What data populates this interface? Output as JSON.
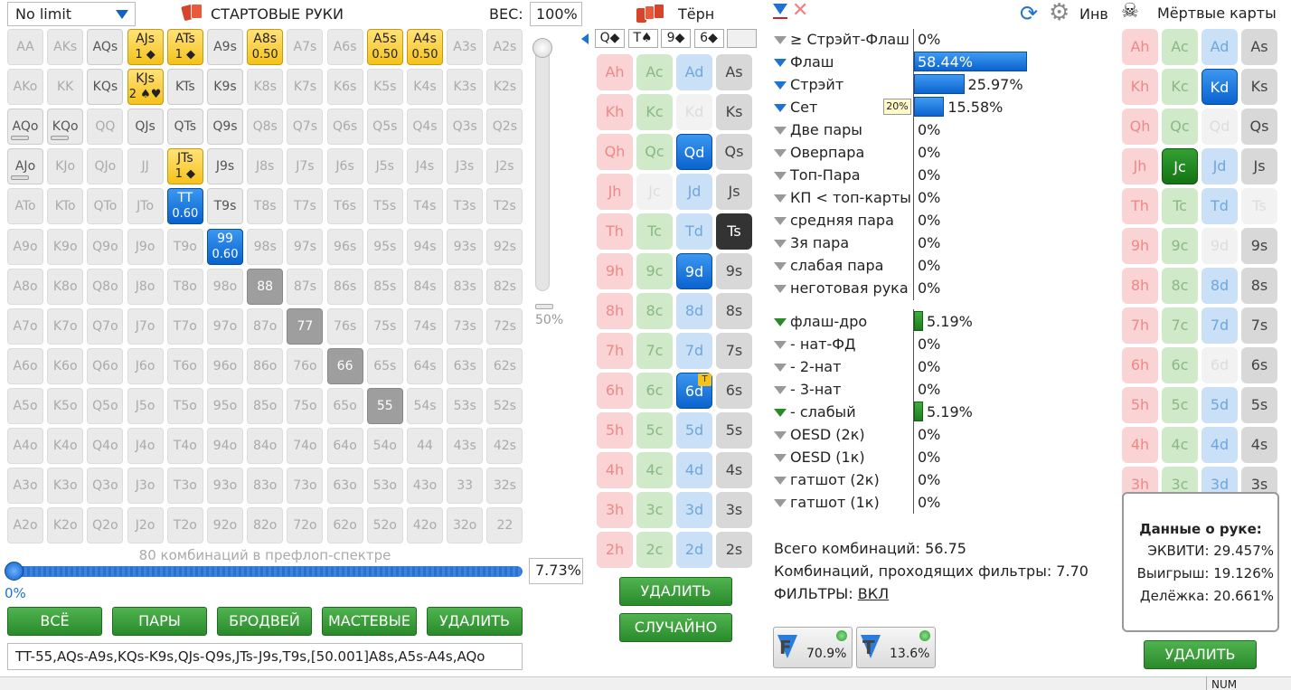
{
  "preflop": {
    "limit_select": "No limit",
    "title": "СТАРТОВЫЕ РУКИ",
    "weight_label": "ВЕС:",
    "weight_value": "100%",
    "slider_pct": "50%",
    "combos_note": "80 комбинаций в префлоп-спектре",
    "range_pct": "7.73%",
    "zero": "0%",
    "buttons": [
      "ВСЁ",
      "ПАРЫ",
      "БРОДВЕЙ",
      "МАСТЕВЫЕ",
      "УДАЛИТЬ"
    ],
    "range_text": "TT-55,AQs-A9s,KQs-K9s,QJs-Q9s,JTs-J9s,T9s,[50.001]A8s,A5s-A4s,AQo",
    "grid": [
      [
        "AA",
        "AKs",
        "AQs",
        "AJs|1 ◆",
        "ATs|1 ◆",
        "A9s",
        "A8s|0.50",
        "A7s",
        "A6s",
        "A5s|0.50",
        "A4s|0.50",
        "A3s",
        "A2s"
      ],
      [
        "AKo",
        "KK",
        "KQs",
        "KJs|2 ♠♥",
        "KTs",
        "K9s",
        "K8s",
        "K7s",
        "K6s",
        "K5s",
        "K4s",
        "K3s",
        "K2s"
      ],
      [
        "AQo",
        "KQo",
        "QQ",
        "QJs",
        "QTs",
        "Q9s",
        "Q8s",
        "Q7s",
        "Q6s",
        "Q5s",
        "Q4s",
        "Q3s",
        "Q2s"
      ],
      [
        "AJo",
        "KJo",
        "QJo",
        "JJ",
        "JTs|1 ◆",
        "J9s",
        "J8s",
        "J7s",
        "J6s",
        "J5s",
        "J4s",
        "J3s",
        "J2s"
      ],
      [
        "ATo",
        "KTo",
        "QTo",
        "JTo",
        "TT|0.60",
        "T9s",
        "T8s",
        "T7s",
        "T6s",
        "T5s",
        "T4s",
        "T3s",
        "T2s"
      ],
      [
        "A9o",
        "K9o",
        "Q9o",
        "J9o",
        "T9o",
        "99|0.60",
        "98s",
        "97s",
        "96s",
        "95s",
        "94s",
        "93s",
        "92s"
      ],
      [
        "A8o",
        "K8o",
        "Q8o",
        "J8o",
        "T8o",
        "98o",
        "88",
        "87s",
        "86s",
        "85s",
        "84s",
        "83s",
        "82s"
      ],
      [
        "A7o",
        "K7o",
        "Q7o",
        "J7o",
        "T7o",
        "97o",
        "87o",
        "77",
        "76s",
        "75s",
        "74s",
        "73s",
        "72s"
      ],
      [
        "A6o",
        "K6o",
        "Q6o",
        "J6o",
        "T6o",
        "96o",
        "86o",
        "76o",
        "66",
        "65s",
        "64s",
        "63s",
        "62s"
      ],
      [
        "A5o",
        "K5o",
        "Q5o",
        "J5o",
        "T5o",
        "95o",
        "85o",
        "75o",
        "65o",
        "55",
        "54s",
        "53s",
        "52s"
      ],
      [
        "A4o",
        "K4o",
        "Q4o",
        "J4o",
        "T4o",
        "94o",
        "84o",
        "74o",
        "64o",
        "54o",
        "44",
        "43s",
        "42s"
      ],
      [
        "A3o",
        "K3o",
        "Q3o",
        "J3o",
        "T3o",
        "93o",
        "83o",
        "73o",
        "63o",
        "53o",
        "43o",
        "33",
        "32s"
      ],
      [
        "A2o",
        "K2o",
        "Q2o",
        "J2o",
        "T2o",
        "92o",
        "82o",
        "72o",
        "62o",
        "52o",
        "42o",
        "32o",
        "22"
      ]
    ]
  },
  "board": {
    "title": "Тёрн",
    "cards": [
      "Q◆",
      "T♠",
      "9◆",
      "6◆",
      ""
    ],
    "turn_badge": "T",
    "delete_label": "УДАЛИТЬ",
    "random_label": "СЛУЧАЙНО"
  },
  "ranks": [
    "A",
    "K",
    "Q",
    "J",
    "T",
    "9",
    "8",
    "7",
    "6",
    "5",
    "4",
    "3",
    "2"
  ],
  "filters": {
    "items": [
      {
        "label": "≥ Стрэйт-Флаш",
        "pct": "0%"
      },
      {
        "label": "Флаш",
        "pct": "58.44%",
        "value": 58.44
      },
      {
        "label": "Стрэйт",
        "pct": "25.97%",
        "value": 25.97
      },
      {
        "label": "Сет",
        "pct": "15.58%",
        "value": 15.58,
        "badge": "20%"
      },
      {
        "label": "Две пары",
        "pct": "0%"
      },
      {
        "label": "Оверпара",
        "pct": "0%"
      },
      {
        "label": "Топ-Пара",
        "pct": "0%"
      },
      {
        "label": "КП < топ-карты",
        "pct": "0%"
      },
      {
        "label": "средняя пара",
        "pct": "0%"
      },
      {
        "label": "3я пара",
        "pct": "0%"
      },
      {
        "label": "слабая пара",
        "pct": "0%"
      },
      {
        "label": "неготовая рука",
        "pct": "0%"
      }
    ],
    "draws": [
      {
        "label": "флаш-дро",
        "pct": "5.19%",
        "value": 5.19
      },
      {
        "label": "- нат-ФД",
        "pct": "0%"
      },
      {
        "label": "- 2-нат",
        "pct": "0%"
      },
      {
        "label": "- 3-нат",
        "pct": "0%"
      },
      {
        "label": "- слабый",
        "pct": "5.19%",
        "value": 5.19
      },
      {
        "label": "OESD (2к)",
        "pct": "0%"
      },
      {
        "label": "OESD (1к)",
        "pct": "0%"
      },
      {
        "label": "гатшот (2к)",
        "pct": "0%"
      },
      {
        "label": "гатшот (1к)",
        "pct": "0%"
      }
    ],
    "total_combos": "Всего комбинаций: 56.75",
    "passing_combos": "Комбинаций, проходящих фильтры: 7.70",
    "filters_label": "ФИЛЬТРЫ:",
    "filters_state": "ВКЛ",
    "f_letter": "F",
    "f_pct": "70.9%",
    "t_letter": "T",
    "t_pct": "13.6%",
    "inv_label": "Инв"
  },
  "dead": {
    "title": "Мёртвые карты",
    "delete_label": "УДАЛИТЬ"
  },
  "hand_data": {
    "title": "Данные о руке:",
    "equity": "ЭКВИТИ: 29.457%",
    "win": "Выигрыш: 19.126%",
    "tie": "Делёжка: 20.661%"
  },
  "status": {
    "num": "NUM"
  },
  "colors": {
    "accent_blue": "#0b63cf",
    "button_green": "#2a8a2a",
    "highlight_gold": "#f5c21b"
  }
}
